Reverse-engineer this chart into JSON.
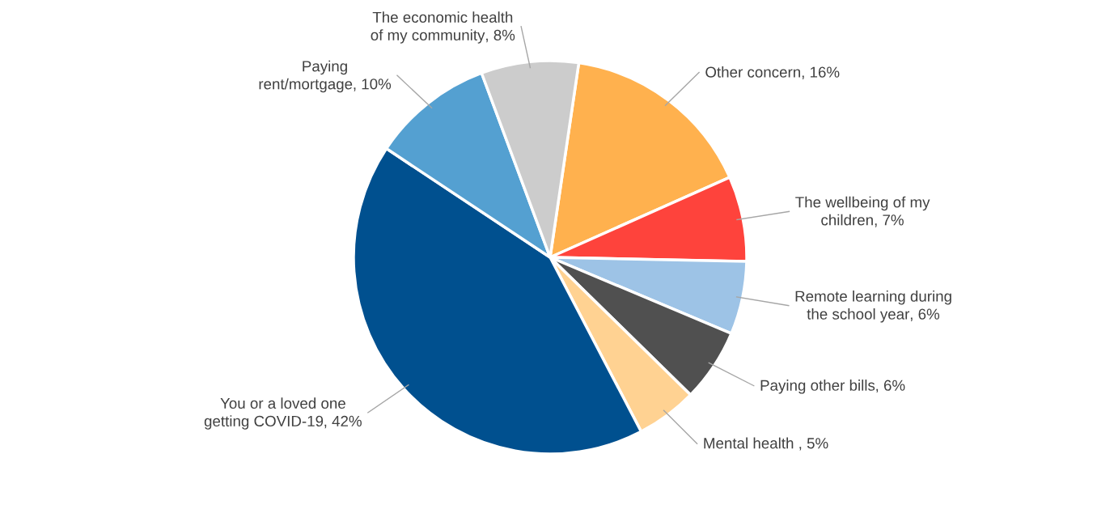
{
  "chart_data": {
    "type": "pie",
    "categories": [
      "Other concern",
      "The wellbeing of my\nchildren",
      "Remote learning during\nthe school year",
      "Paying other bills",
      "Mental health ",
      "You or a loved one\ngetting COVID-19",
      "Paying\nrent/mortgage",
      "The economic health\nof my community"
    ],
    "values": [
      16,
      7,
      6,
      6,
      5,
      42,
      10,
      8
    ],
    "colors": [
      "#ffb14e",
      "#fe433c",
      "#9dc3e6",
      "#505050",
      "#ffd292",
      "#00508f",
      "#54a0d1",
      "#cccccc"
    ],
    "value_labels": [
      ", 16%",
      ", 7%",
      ", 6%",
      ", 6%",
      ", 5%",
      ", 42%",
      ", 10%",
      ", 8%"
    ],
    "legend": false
  }
}
